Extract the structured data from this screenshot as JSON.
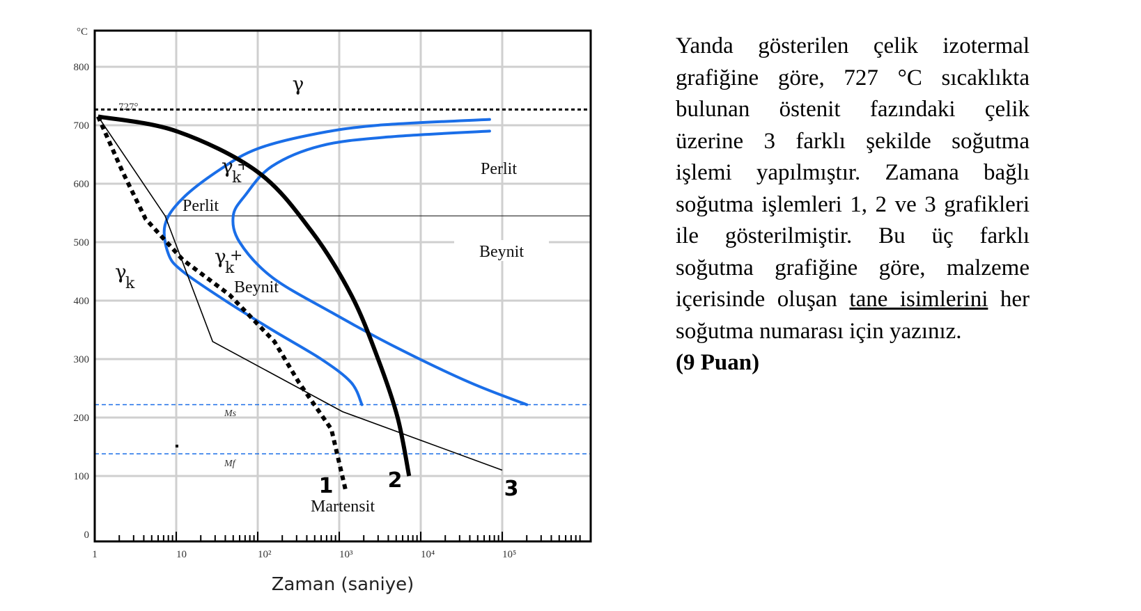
{
  "chart_data": {
    "type": "line",
    "title": "",
    "xlabel": "Zaman (saniye)",
    "ylabel": "°C",
    "x_scale": "log",
    "x_ticks": [
      "1",
      "10",
      "10²",
      "10³",
      "10⁴",
      "10⁵"
    ],
    "y_ticks": [
      "0",
      "100",
      "200",
      "300",
      "400",
      "500",
      "600",
      "700",
      "800"
    ],
    "ylim": [
      0,
      860
    ],
    "grid": true,
    "reference_lines": [
      {
        "label": "727°",
        "y": 727,
        "style": "dashed",
        "color": "#000000"
      },
      {
        "label": "Ms",
        "y": 222,
        "style": "dashed",
        "color": "#1a6ee8"
      },
      {
        "label": "Mf",
        "y": 138,
        "style": "dashed",
        "color": "#1a6ee8"
      }
    ],
    "regions": [
      "γ",
      "Perlit",
      "Perlit",
      "Beynit",
      "Beynit",
      "Martensit"
    ],
    "region_gamma_k": "γ",
    "region_gamma_k_sub": "k",
    "region_gamma_k_plus": "+",
    "colors": {
      "ttt_curves": "#1a6ee8",
      "cooling": "#000000",
      "grid": "#cccccc"
    },
    "series": [
      {
        "name": "1",
        "style": "dotted",
        "points": [
          [
            1.1,
            715
          ],
          [
            2.2,
            620
          ],
          [
            4.2,
            540
          ],
          [
            12,
            470
          ],
          [
            45,
            410
          ],
          [
            160,
            330
          ],
          [
            320,
            260
          ],
          [
            800,
            180
          ],
          [
            1200,
            75
          ]
        ]
      },
      {
        "name": "2",
        "style": "solid-thick",
        "points": [
          [
            1.1,
            715
          ],
          [
            10,
            690
          ],
          [
            100,
            620
          ],
          [
            450,
            520
          ],
          [
            1400,
            410
          ],
          [
            3000,
            300
          ],
          [
            5200,
            200
          ],
          [
            7200,
            100
          ]
        ]
      },
      {
        "name": "3",
        "style": "solid-thin",
        "points": [
          [
            1.1,
            715
          ],
          [
            7.3,
            545
          ],
          [
            28,
            330
          ],
          [
            1100,
            210
          ],
          [
            100000,
            110
          ]
        ]
      },
      {
        "name": "",
        "style": "ttt-start",
        "points": [
          [
            70000,
            710
          ],
          [
            3000,
            700
          ],
          [
            500,
            685
          ],
          [
            100,
            660
          ],
          [
            35,
            625
          ],
          [
            12,
            575
          ],
          [
            7.3,
            530
          ],
          [
            8,
            480
          ],
          [
            12,
            450
          ],
          [
            40,
            400
          ],
          [
            150,
            350
          ],
          [
            600,
            300
          ],
          [
            1400,
            260
          ],
          [
            1900,
            222
          ]
        ]
      },
      {
        "name": "",
        "style": "ttt-end",
        "points": [
          [
            70000,
            690
          ],
          [
            4000,
            680
          ],
          [
            600,
            665
          ],
          [
            150,
            630
          ],
          [
            70,
            580
          ],
          [
            50,
            545
          ],
          [
            60,
            500
          ],
          [
            150,
            440
          ],
          [
            800,
            380
          ],
          [
            5000,
            320
          ],
          [
            40000,
            260
          ],
          [
            200000,
            222
          ]
        ]
      }
    ],
    "annotations": {
      "temp_727": "727°",
      "gamma": "γ",
      "perlit_left": "Perlit",
      "perlit_right": "Perlit",
      "beynit_right": "Beynit",
      "beynit_mid": "Beynit",
      "martensit": "Martensit",
      "ms": "Ms",
      "mf": "Mf",
      "label1": "1",
      "label2": "2",
      "label3": "3"
    }
  },
  "question": {
    "text_a": "Yanda gösterilen çelik izotermal grafiğine göre, 727 °C sıcaklıkta bulunan östenit fazındaki çelik üzerine 3 farklı şekilde soğutma işlemi yapılmıştır. Zamana bağlı soğutma işlemleri 1, 2 ve 3 grafikleri ile gösterilmiştir. Bu üç farklı soğutma grafiğine göre, malzeme içerisinde oluşan ",
    "underlined": "tane isimlerini",
    "text_b": " her soğutma numarası için yazınız.",
    "points": "(9 Puan)"
  }
}
